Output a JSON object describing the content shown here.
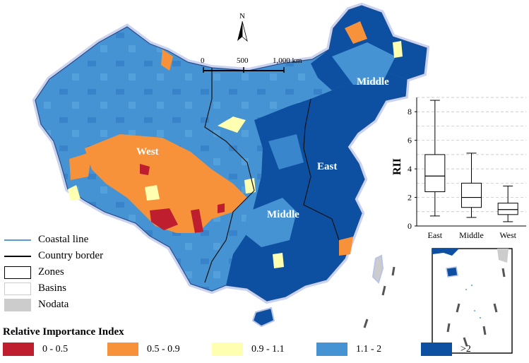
{
  "north": {
    "label": "N"
  },
  "scale": {
    "ticks": [
      "0",
      "500",
      "1,000 km"
    ]
  },
  "zones": [
    {
      "label": "West"
    },
    {
      "label": "Middle"
    },
    {
      "label": "East"
    },
    {
      "label": "Middle"
    }
  ],
  "line_legend": [
    {
      "label": "Coastal line",
      "style": "coastal",
      "color": "#5b9bd5"
    },
    {
      "label": "Country border",
      "style": "border",
      "color": "#000000"
    },
    {
      "label": "Zones",
      "style": "box-black",
      "color": "#000000"
    },
    {
      "label": "Basins",
      "style": "box-light",
      "color": "#cccccc"
    },
    {
      "label": "Nodata",
      "style": "fill",
      "color": "#cccccc"
    }
  ],
  "rii_legend": {
    "title": "Relative Importance Index",
    "items": [
      {
        "label": "0 - 0.5",
        "color": "#be1e2d"
      },
      {
        "label": "0.5 - 0.9",
        "color": "#f7923a"
      },
      {
        "label": "0.9 - 1.1",
        "color": "#ffffb2"
      },
      {
        "label": "1.1 - 2",
        "color": "#4593d3"
      },
      {
        "label": ">2",
        "color": "#0d4fa0"
      }
    ]
  },
  "chart_data": {
    "type": "box",
    "categories": [
      "East",
      "Middle",
      "West"
    ],
    "ylabel": "RII",
    "ylim": [
      0,
      9
    ],
    "yticks": [
      0,
      2,
      4,
      6,
      8
    ],
    "boxes": [
      {
        "name": "East",
        "min": 0.7,
        "q1": 2.4,
        "median": 3.5,
        "q3": 5.0,
        "max": 8.8
      },
      {
        "name": "Middle",
        "min": 0.6,
        "q1": 1.3,
        "median": 2.0,
        "q3": 3.0,
        "max": 5.1
      },
      {
        "name": "West",
        "min": 0.3,
        "q1": 0.8,
        "median": 1.15,
        "q3": 1.6,
        "max": 2.8
      }
    ]
  }
}
